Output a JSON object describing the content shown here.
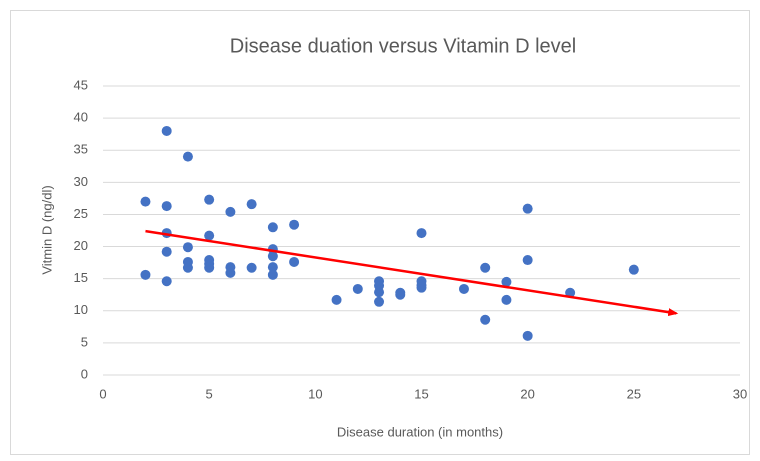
{
  "chart_data": {
    "type": "scatter",
    "title": "Disease duation versus Vitamin D level",
    "x_label": "Disease duration (in months)",
    "y_label": "Vitmin D (ng/dl)",
    "color": "#4472c4",
    "x": [
      2,
      2,
      3,
      3,
      3,
      3,
      3,
      4,
      4,
      4,
      4,
      5,
      5,
      5,
      5,
      5,
      6,
      6,
      6,
      7,
      7,
      8,
      8,
      8,
      8,
      8,
      9,
      9,
      11,
      12,
      13,
      13,
      13,
      13,
      14,
      14,
      15,
      15,
      15,
      15,
      17,
      18,
      18,
      19,
      19,
      20,
      20,
      20,
      22,
      25
    ],
    "values": [
      27,
      15.6,
      38,
      26.3,
      22.1,
      19.2,
      14.6,
      34,
      19.9,
      17.6,
      16.7,
      27.3,
      21.7,
      17.9,
      17.3,
      16.7,
      25.4,
      16.8,
      15.9,
      26.6,
      16.7,
      23,
      19.6,
      18.5,
      16.8,
      15.6,
      23.4,
      17.6,
      11.7,
      13.4,
      14.6,
      13.9,
      12.9,
      11.4,
      12.8,
      12.5,
      22.1,
      14.6,
      14,
      13.6,
      13.4,
      16.7,
      8.6,
      14.5,
      11.7,
      25.9,
      17.9,
      6.1,
      12.8,
      16.4
    ],
    "trendline": {
      "color": "#ff0000",
      "x": [
        2,
        27
      ],
      "y": [
        22.4,
        9.6
      ]
    },
    "xlim": [
      0,
      30
    ],
    "xticks": [
      0,
      5,
      10,
      15,
      20,
      25,
      30
    ],
    "ylim": [
      0,
      45
    ],
    "yticks": [
      0,
      5,
      10,
      15,
      20,
      25,
      30,
      35,
      40,
      45
    ],
    "grid": true
  }
}
